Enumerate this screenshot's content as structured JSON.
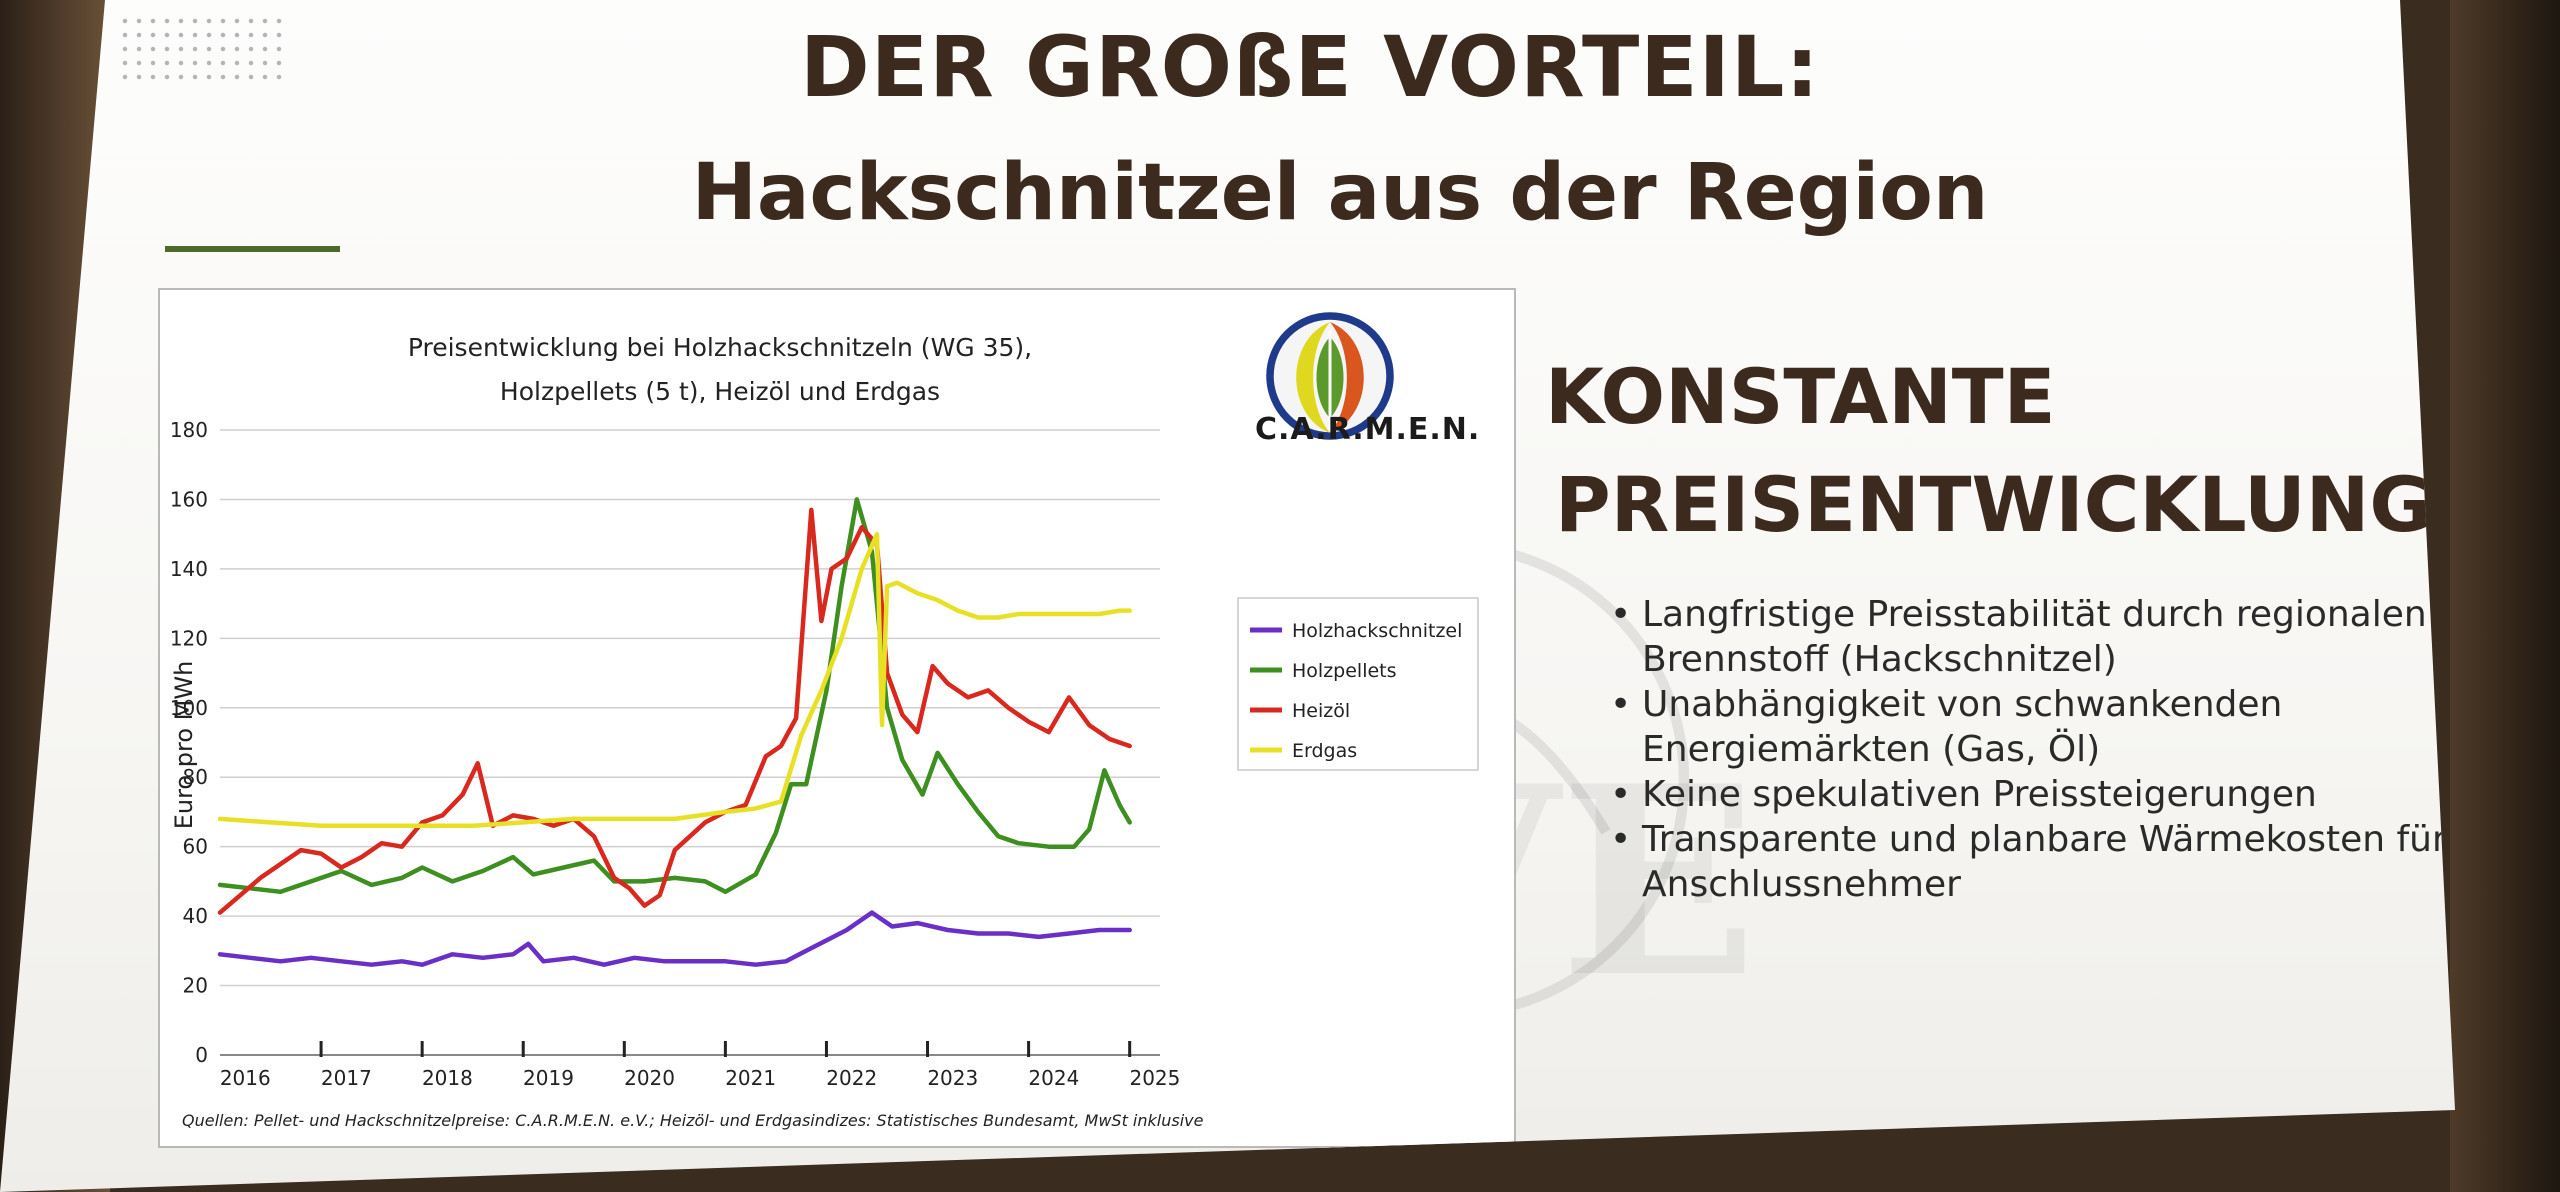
{
  "slide": {
    "title_line1": "DER GROßE VORTEIL:",
    "title_line2": "Hackschnitzel aus der Region",
    "right_heading_line1": "KONSTANTE",
    "right_heading_line2": "PREISENTWICKLUNG",
    "bullets": [
      "Langfristige Preisstabilität durch regionalen Brennstoff (Hackschnitzel)",
      "Unabhängigkeit von schwankenden Energiemärkten (Gas, Öl)",
      "Keine spekulativen Preissteigerungen",
      "Transparente und planbare Wärmekosten für alle Anschlussnehmer"
    ],
    "logo_text": "C.A.R.M.E.N.",
    "watermark_text": "NVE"
  },
  "chart_data": {
    "type": "line",
    "title_line1": "Preisentwicklung bei Holzhackschnitzeln (WG 35),",
    "title_line2": "Holzpellets (5 t), Heizöl und Erdgas",
    "ylabel": "Euro pro MWh",
    "xlabel": "",
    "ylim": [
      0,
      180
    ],
    "yticks": [
      0,
      20,
      40,
      60,
      80,
      100,
      120,
      140,
      160,
      180
    ],
    "xlim": [
      2016.0,
      2025.3
    ],
    "xtick_labels": [
      "2016",
      "2017",
      "2018",
      "2019",
      "2020",
      "2021",
      "2022",
      "2023",
      "2024",
      "2025"
    ],
    "grid": true,
    "legend_position": "right",
    "source": "Quellen: Pellet- und Hackschnitzelpreise: C.A.R.M.E.N. e.V.; Heizöl- und Erdgasindizes: Statistisches Bundesamt, MwSt inklusive",
    "series": [
      {
        "name": "Holzhackschnitzel",
        "color": "#6a2fc7",
        "x": [
          2016.0,
          2016.3,
          2016.6,
          2016.9,
          2017.2,
          2017.5,
          2017.8,
          2018.0,
          2018.3,
          2018.6,
          2018.9,
          2019.05,
          2019.2,
          2019.5,
          2019.8,
          2020.1,
          2020.4,
          2020.7,
          2021.0,
          2021.3,
          2021.6,
          2021.8,
          2022.0,
          2022.2,
          2022.45,
          2022.65,
          2022.9,
          2023.2,
          2023.5,
          2023.8,
          2024.1,
          2024.4,
          2024.7,
          2025.0
        ],
        "y": [
          29,
          28,
          27,
          28,
          27,
          26,
          27,
          26,
          29,
          28,
          29,
          32,
          27,
          28,
          26,
          28,
          27,
          27,
          27,
          26,
          27,
          30,
          33,
          36,
          41,
          37,
          38,
          36,
          35,
          35,
          34,
          35,
          36,
          36
        ]
      },
      {
        "name": "Holzpellets",
        "color": "#3d8f1f",
        "x": [
          2016.0,
          2016.3,
          2016.6,
          2016.9,
          2017.2,
          2017.5,
          2017.8,
          2018.0,
          2018.3,
          2018.6,
          2018.9,
          2019.1,
          2019.4,
          2019.7,
          2019.9,
          2020.2,
          2020.5,
          2020.8,
          2021.0,
          2021.3,
          2021.5,
          2021.65,
          2021.8,
          2022.0,
          2022.15,
          2022.3,
          2022.45,
          2022.6,
          2022.75,
          2022.95,
          2023.1,
          2023.3,
          2023.5,
          2023.7,
          2023.9,
          2024.2,
          2024.45,
          2024.6,
          2024.75,
          2024.9,
          2025.0
        ],
        "y": [
          49,
          48,
          47,
          50,
          53,
          49,
          51,
          54,
          50,
          53,
          57,
          52,
          54,
          56,
          50,
          50,
          51,
          50,
          47,
          52,
          64,
          78,
          78,
          105,
          135,
          160,
          145,
          100,
          85,
          75,
          87,
          78,
          70,
          63,
          61,
          60,
          60,
          65,
          82,
          72,
          67
        ]
      },
      {
        "name": "Heizöl",
        "color": "#d9281e",
        "x": [
          2016.0,
          2016.2,
          2016.4,
          2016.6,
          2016.8,
          2017.0,
          2017.2,
          2017.4,
          2017.6,
          2017.8,
          2018.0,
          2018.2,
          2018.4,
          2018.55,
          2018.7,
          2018.9,
          2019.1,
          2019.3,
          2019.5,
          2019.7,
          2019.9,
          2020.05,
          2020.2,
          2020.35,
          2020.5,
          2020.8,
          2021.0,
          2021.2,
          2021.4,
          2021.55,
          2021.7,
          2021.85,
          2021.95,
          2022.05,
          2022.2,
          2022.35,
          2022.5,
          2022.6,
          2022.75,
          2022.9,
          2023.05,
          2023.2,
          2023.4,
          2023.6,
          2023.8,
          2024.0,
          2024.2,
          2024.4,
          2024.6,
          2024.8,
          2025.0
        ],
        "y": [
          41,
          46,
          51,
          55,
          59,
          58,
          54,
          57,
          61,
          60,
          67,
          69,
          75,
          84,
          66,
          69,
          68,
          66,
          68,
          63,
          51,
          48,
          43,
          46,
          59,
          67,
          70,
          72,
          86,
          89,
          97,
          157,
          125,
          140,
          143,
          152,
          147,
          110,
          98,
          93,
          112,
          107,
          103,
          105,
          100,
          96,
          93,
          103,
          95,
          91,
          89
        ]
      },
      {
        "name": "Erdgas",
        "color": "#e8e024",
        "x": [
          2016.0,
          2016.5,
          2017.0,
          2017.5,
          2018.0,
          2018.5,
          2019.0,
          2019.5,
          2020.0,
          2020.5,
          2021.0,
          2021.3,
          2021.55,
          2021.75,
          2021.95,
          2022.15,
          2022.35,
          2022.5,
          2022.55,
          2022.6,
          2022.7,
          2022.9,
          2023.1,
          2023.3,
          2023.5,
          2023.7,
          2023.9,
          2024.1,
          2024.3,
          2024.5,
          2024.7,
          2024.9,
          2025.0
        ],
        "y": [
          68,
          67,
          66,
          66,
          66,
          66,
          67,
          68,
          68,
          68,
          70,
          71,
          73,
          92,
          105,
          120,
          140,
          150,
          95,
          135,
          136,
          133,
          131,
          128,
          126,
          126,
          127,
          127,
          127,
          127,
          127,
          128,
          128
        ]
      }
    ]
  }
}
